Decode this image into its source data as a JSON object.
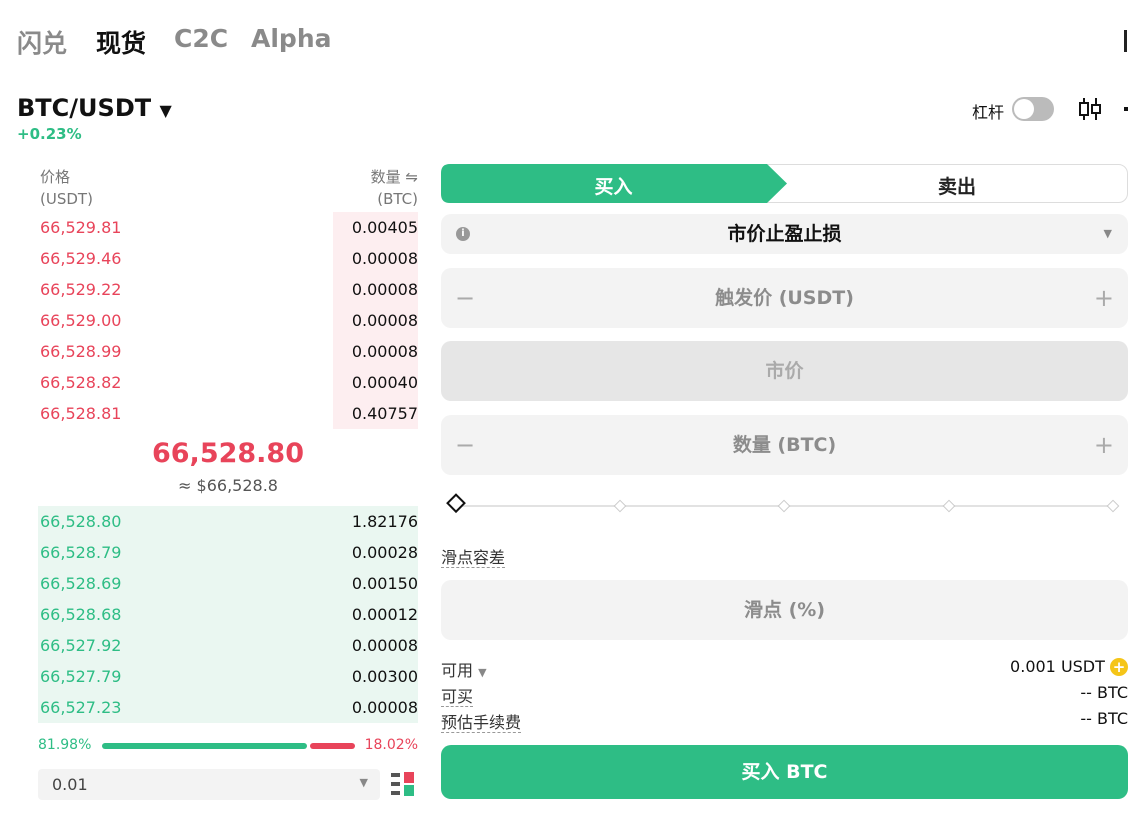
{
  "tabs": [
    "闪兑",
    "现货",
    "C2C",
    "Alpha"
  ],
  "pair": "BTC/USDT",
  "change": "+0.23%",
  "leverage_label": "杠杆",
  "orderbook": {
    "price_header": "价格",
    "price_unit": "(USDT)",
    "qty_header": "数量",
    "qty_unit": "(BTC)",
    "asks": [
      [
        "66,529.81",
        "0.00405"
      ],
      [
        "66,529.46",
        "0.00008"
      ],
      [
        "66,529.22",
        "0.00008"
      ],
      [
        "66,529.00",
        "0.00008"
      ],
      [
        "66,528.99",
        "0.00008"
      ],
      [
        "66,528.82",
        "0.00040"
      ],
      [
        "66,528.81",
        "0.40757"
      ]
    ],
    "last_price": "66,528.80",
    "last_price_fiat": "≈ $66,528.8",
    "bids": [
      [
        "66,528.80",
        "1.82176"
      ],
      [
        "66,528.79",
        "0.00028"
      ],
      [
        "66,528.69",
        "0.00150"
      ],
      [
        "66,528.68",
        "0.00012"
      ],
      [
        "66,527.92",
        "0.00008"
      ],
      [
        "66,527.79",
        "0.00300"
      ],
      [
        "66,527.23",
        "0.00008"
      ]
    ],
    "buy_ratio": "81.98%",
    "sell_ratio": "18.02%",
    "precision": "0.01"
  },
  "form": {
    "buy_tab": "买入",
    "sell_tab": "卖出",
    "order_type": "市价止盈止损",
    "trigger_placeholder": "触发价 (USDT)",
    "price_placeholder": "市价",
    "amount_placeholder": "数量 (BTC)",
    "slippage_label": "滑点容差",
    "slippage_placeholder": "滑点 (%)",
    "available_label": "可用",
    "available_value": "0.001 USDT",
    "max_buy_label": "可买",
    "max_buy_value": "-- BTC",
    "fee_label": "预估手续费",
    "fee_value": "-- BTC",
    "submit": "买入 BTC"
  }
}
